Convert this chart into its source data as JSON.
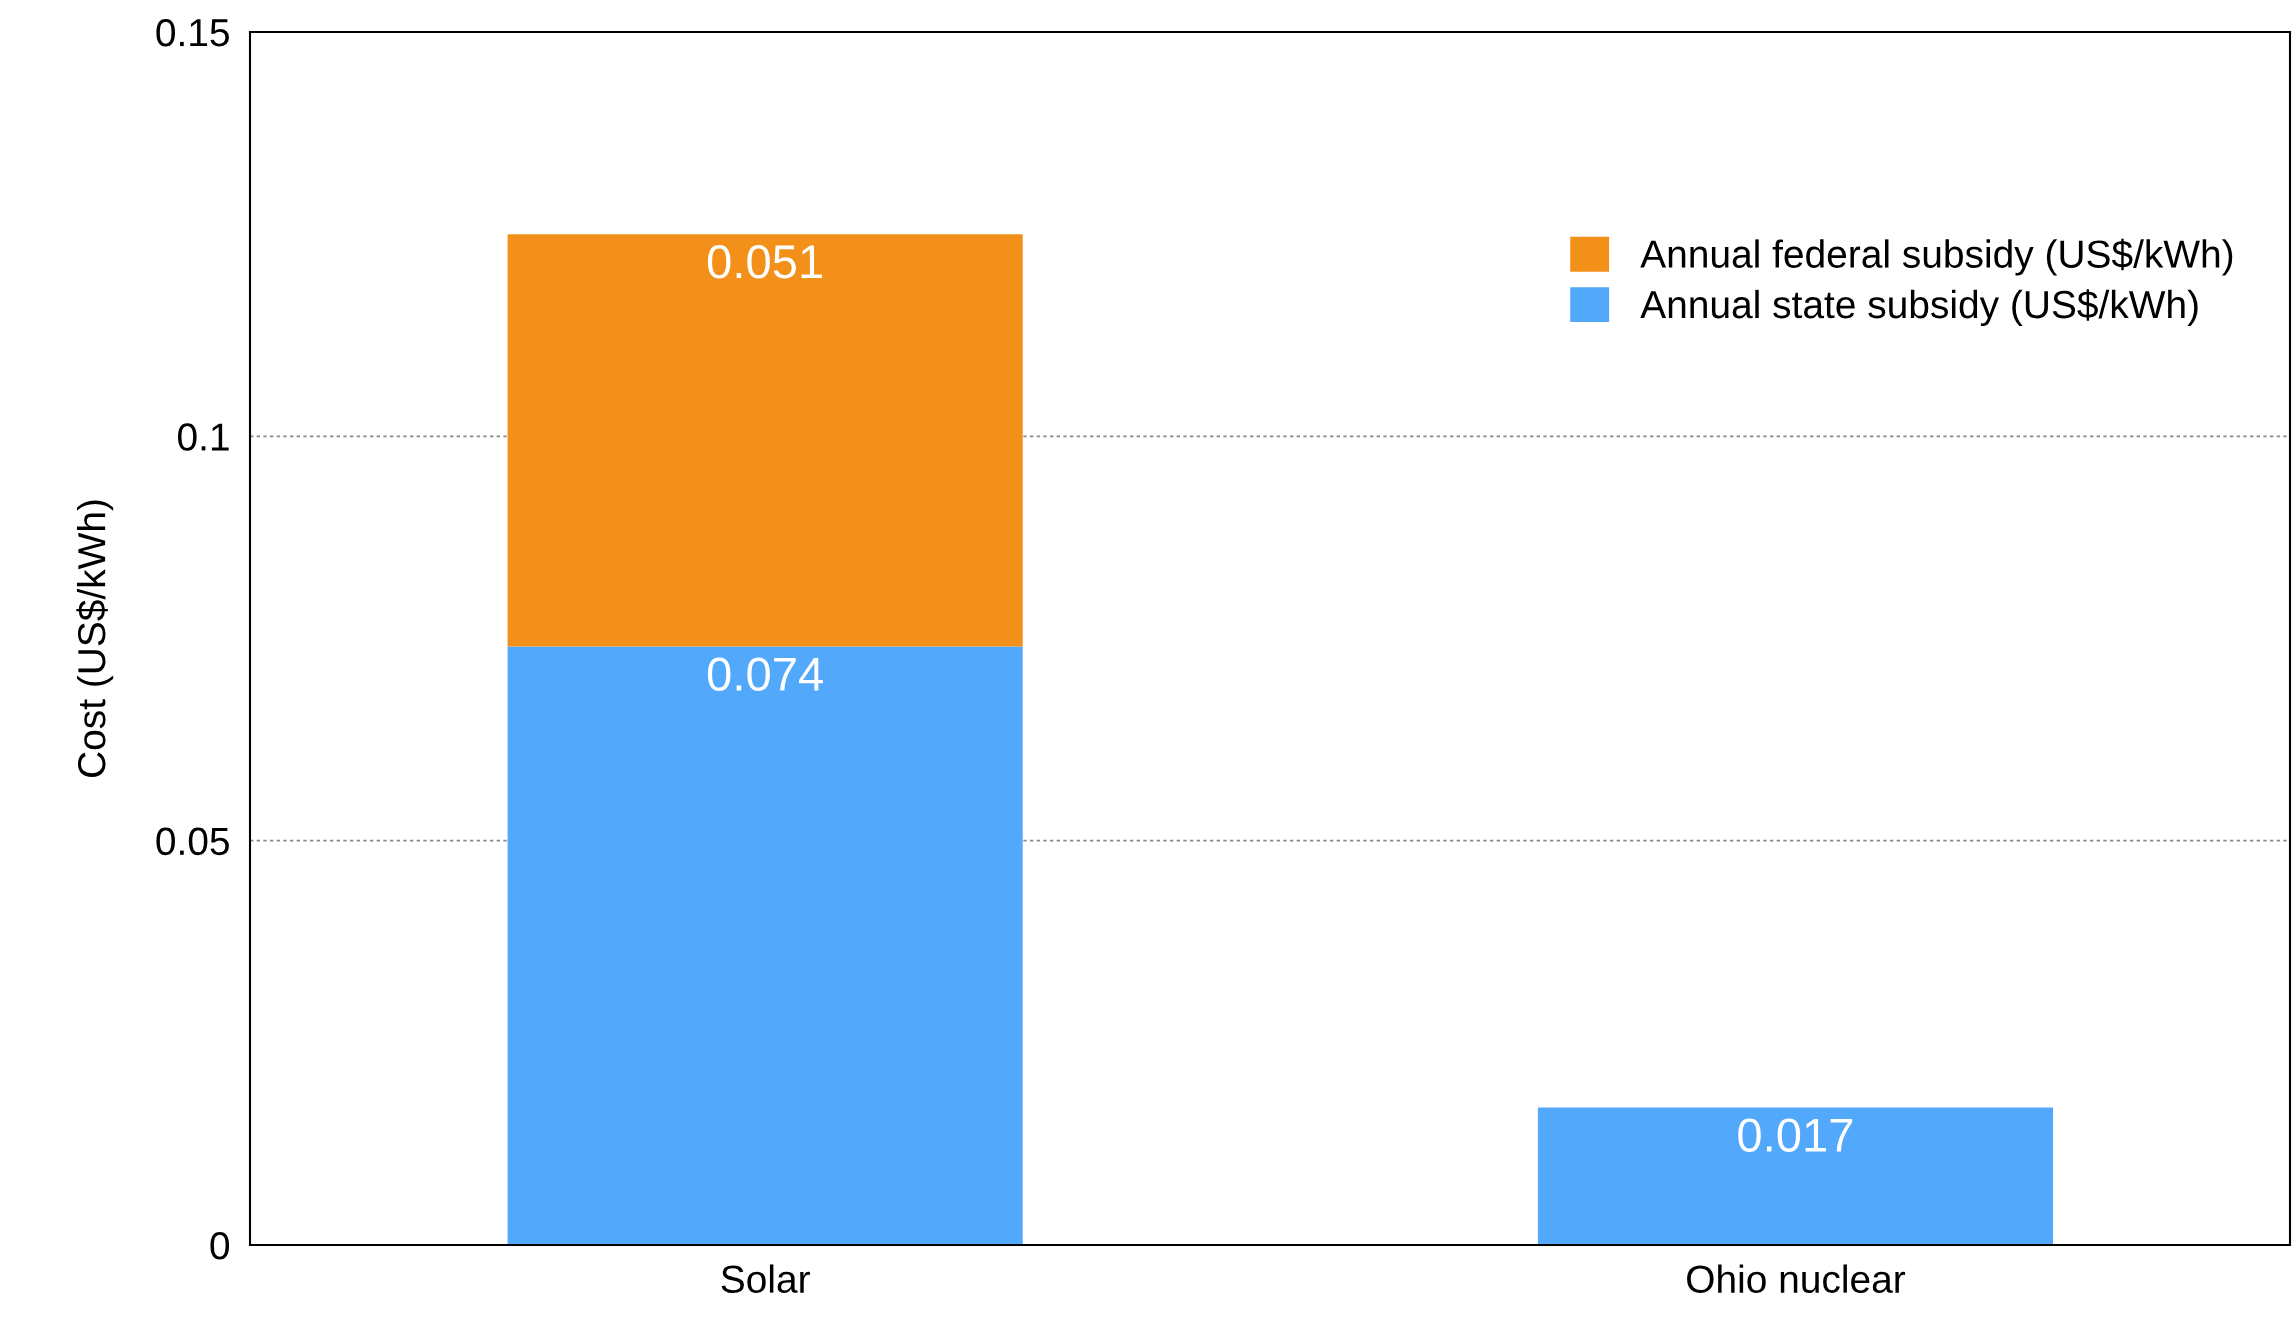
{
  "chart_data": {
    "type": "bar",
    "stacked": true,
    "ylabel": "Cost (US$/kWh)",
    "categories": [
      "Solar",
      "Ohio nuclear"
    ],
    "series": [
      {
        "name": "Annual state subsidy (US$/kWh)",
        "color": "#52a8fa",
        "values": [
          0.074,
          0.017
        ]
      },
      {
        "name": "Annual federal subsidy (US$/kWh)",
        "color": "#f29019",
        "values": [
          0.051,
          null
        ]
      }
    ],
    "ylim": [
      0,
      0.15
    ],
    "yticks": [
      0,
      0.05,
      0.1,
      0.15
    ],
    "grid": "y",
    "legend": "top right",
    "data_labels": true
  }
}
